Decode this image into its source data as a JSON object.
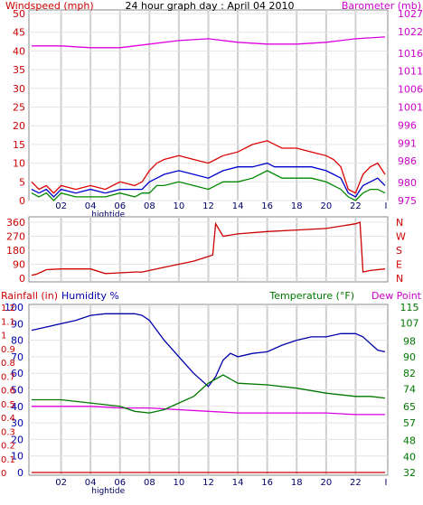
{
  "chart_data": [
    {
      "type": "line",
      "title": "24 hour graph day : April 04 2010",
      "left_axis_label": "Windspeed (mph)",
      "right_axis_label": "Barometer (mb)",
      "left_ticks": [
        "0",
        "5",
        "10",
        "15",
        "20",
        "25",
        "30",
        "35",
        "40",
        "45",
        "50"
      ],
      "right_ticks": [
        "975",
        "980",
        "986",
        "991",
        "996",
        "1001",
        "1006",
        "1011",
        "1016",
        "1022",
        "1027"
      ],
      "ylim": [
        0,
        50
      ],
      "y2lim": [
        975,
        1027
      ],
      "x_ticks": [
        "02",
        "04",
        "06",
        "08",
        "10",
        "12",
        "14",
        "16",
        "18",
        "20",
        "22"
      ],
      "x_marker": "hightide",
      "x_end_label": "I",
      "grid": true,
      "series": [
        {
          "color": "#dd0000",
          "x": [
            0,
            0.5,
            1,
            1.5,
            2,
            3,
            4,
            5,
            6,
            7,
            7.5,
            8,
            8.5,
            9,
            10,
            11,
            12,
            12.5,
            13,
            14,
            15,
            16,
            16.5,
            17,
            18,
            19,
            20,
            20.5,
            21,
            21.5,
            22,
            22.5,
            23,
            23.5,
            24
          ],
          "values": [
            5,
            3,
            4,
            2,
            4,
            3,
            4,
            3,
            5,
            4,
            5,
            8,
            10,
            11,
            12,
            11,
            10,
            11,
            12,
            13,
            15,
            16,
            15,
            14,
            14,
            13,
            12,
            11,
            9,
            3,
            2,
            7,
            9,
            10,
            7
          ]
        },
        {
          "color": "#0000cc",
          "x": [
            0,
            0.5,
            1,
            1.5,
            2,
            3,
            4,
            5,
            6,
            7,
            7.5,
            8,
            8.5,
            9,
            10,
            11,
            12,
            12.5,
            13,
            14,
            15,
            16,
            16.5,
            17,
            18,
            19,
            20,
            20.5,
            21,
            21.5,
            22,
            22.5,
            23,
            23.5,
            24
          ],
          "values": [
            3,
            2,
            3,
            1,
            3,
            2,
            3,
            2,
            3,
            3,
            3,
            5,
            6,
            7,
            8,
            7,
            6,
            7,
            8,
            9,
            9,
            10,
            9,
            9,
            9,
            9,
            8,
            7,
            6,
            2,
            1,
            4,
            5,
            6,
            4
          ]
        },
        {
          "color": "#008800",
          "x": [
            0,
            0.5,
            1,
            1.5,
            2,
            3,
            4,
            5,
            6,
            7,
            7.5,
            8,
            8.5,
            9,
            10,
            11,
            12,
            12.5,
            13,
            14,
            15,
            16,
            16.5,
            17,
            18,
            19,
            20,
            20.5,
            21,
            21.5,
            22,
            22.5,
            23,
            23.5,
            24
          ],
          "values": [
            2,
            1,
            2,
            0,
            2,
            1,
            1,
            1,
            2,
            1,
            2,
            2,
            4,
            4,
            5,
            4,
            3,
            4,
            5,
            5,
            6,
            8,
            7,
            6,
            6,
            6,
            5,
            4,
            3,
            1,
            0,
            2,
            3,
            3,
            2
          ]
        },
        {
          "color": "#dd00dd",
          "axis": "right",
          "x": [
            0,
            2,
            4,
            6,
            8,
            10,
            12,
            14,
            16,
            18,
            20,
            22,
            24
          ],
          "values": [
            1018,
            1018,
            1017.5,
            1017.5,
            1018.5,
            1019.5,
            1020,
            1019,
            1018.5,
            1018.5,
            1019,
            1020,
            1020.5
          ]
        }
      ]
    },
    {
      "type": "line",
      "left_ticks": [
        "0",
        "90",
        "180",
        "270",
        "360"
      ],
      "right_ticks": [
        "N",
        "E",
        "S",
        "W",
        "N"
      ],
      "ylim": [
        0,
        360
      ],
      "grid": true,
      "series": [
        {
          "color": "#cc0000",
          "x": [
            0,
            0.3,
            1,
            2,
            4,
            5,
            6,
            7,
            7.5,
            8,
            9,
            10,
            11,
            12,
            12.3,
            12.5,
            13,
            14,
            16,
            18,
            20,
            22,
            22.3,
            22.5,
            23,
            24
          ],
          "values": [
            20,
            25,
            55,
            60,
            60,
            30,
            35,
            40,
            40,
            50,
            70,
            90,
            110,
            140,
            150,
            350,
            270,
            285,
            300,
            310,
            320,
            350,
            360,
            40,
            50,
            60
          ]
        }
      ]
    },
    {
      "type": "line",
      "rainfall_label": "Rainfall (in)",
      "humidity_label": "Humidity %",
      "temperature_label": "Temperature (°F)",
      "dewpoint_label": "Dew Point",
      "humidity_ticks": [
        "0",
        "10",
        "20",
        "30",
        "40",
        "50",
        "60",
        "70",
        "80",
        "90",
        "100"
      ],
      "rainfall_ticks": [
        "0",
        "0.1",
        "0.2",
        "0.3",
        "0.4",
        "0.5",
        "0.6",
        "0.7",
        "0.8",
        "0.9",
        "1",
        "1.1",
        "1.2"
      ],
      "right_ticks": [
        "32",
        "40",
        "48",
        "57",
        "65",
        "74",
        "82",
        "90",
        "98",
        "107",
        "115"
      ],
      "ylim": [
        0,
        100
      ],
      "y2lim": [
        32,
        115
      ],
      "x_ticks": [
        "02",
        "04",
        "06",
        "08",
        "10",
        "12",
        "14",
        "16",
        "18",
        "20",
        "22"
      ],
      "x_marker": "hightide",
      "x_end_label": "I",
      "grid": true,
      "series": [
        {
          "color": "#0000aa",
          "x": [
            0,
            1,
            2,
            3,
            4,
            5,
            6,
            7,
            7.5,
            8,
            9,
            10,
            11,
            12,
            12.5,
            13,
            13.5,
            14,
            15,
            16,
            17,
            18,
            19,
            20,
            21,
            22,
            22.5,
            23,
            23.5,
            24
          ],
          "values": [
            86,
            88,
            90,
            92,
            95,
            96,
            96,
            96,
            95,
            92,
            80,
            70,
            60,
            52,
            58,
            68,
            72,
            70,
            72,
            73,
            77,
            80,
            82,
            82,
            84,
            84,
            82,
            78,
            74,
            73
          ]
        },
        {
          "color": "#dd00dd",
          "x": [
            0,
            2,
            4,
            6,
            8,
            10,
            12,
            14,
            16,
            18,
            20,
            22,
            24
          ],
          "values": [
            40,
            40,
            40,
            39,
            39,
            38,
            37,
            36,
            36,
            36,
            36,
            35,
            35
          ]
        },
        {
          "color": "#007700",
          "x": [
            0,
            2,
            4,
            6,
            7,
            8,
            9,
            10,
            11,
            12,
            13,
            14,
            16,
            18,
            20,
            22,
            23,
            24
          ],
          "values": [
            44,
            44,
            42,
            40,
            37,
            36,
            38,
            42,
            46,
            54,
            59,
            54,
            53,
            51,
            48,
            46,
            46,
            45
          ]
        },
        {
          "color": "#cc0000",
          "x": [
            0,
            24
          ],
          "values": [
            0,
            0
          ]
        }
      ]
    }
  ]
}
